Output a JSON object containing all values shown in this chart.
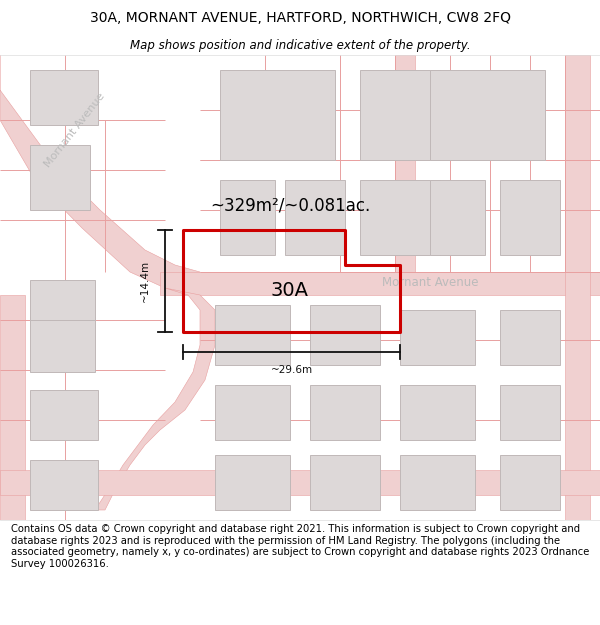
{
  "title": "30A, MORNANT AVENUE, HARTFORD, NORTHWICH, CW8 2FQ",
  "subtitle": "Map shows position and indicative extent of the property.",
  "footer": "Contains OS data © Crown copyright and database right 2021. This information is subject to Crown copyright and database rights 2023 and is reproduced with the permission of HM Land Registry. The polygons (including the associated geometry, namely x, y co-ordinates) are subject to Crown copyright and database rights 2023 Ordnance Survey 100026316.",
  "map_bg": "#f5f0f0",
  "road_line_color": "#e8a0a0",
  "road_fill_color": "#f0d0d0",
  "building_fill": "#ddd8d8",
  "building_edge": "#c0b8b8",
  "property_color": "#cc0000",
  "dim_color": "#111111",
  "area_text": "~329m²/~0.081ac.",
  "label_30A": "30A",
  "dim_width": "~29.6m",
  "dim_height": "~14.4m",
  "street_label_diag": "Mornant Avenue",
  "street_label_horiz": "Mornant Avenue",
  "title_fontsize": 10,
  "subtitle_fontsize": 8.5,
  "footer_fontsize": 7.2,
  "title_color": "#000000",
  "subtitle_color": "#000000",
  "street_color": "#bbbbbb"
}
